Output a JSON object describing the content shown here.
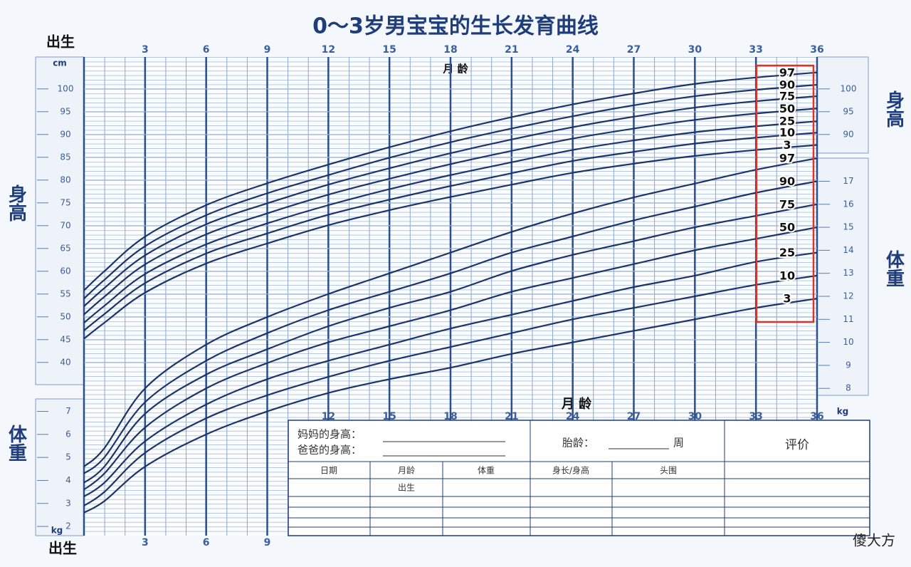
{
  "chart_data": {
    "type": "line",
    "title": "0～3岁男宝宝的生长发育曲线",
    "x_label": "月 龄",
    "y_label": "身高",
    "y2_label": "体重",
    "y_unit": "cm",
    "y2_unit": "kg",
    "x": [
      0,
      1,
      3,
      6,
      9,
      12,
      15,
      18,
      21,
      24,
      27,
      30,
      33,
      36
    ],
    "xlim": [
      0,
      36
    ],
    "xticks": [
      {
        "value": 0,
        "label": "出生"
      },
      3,
      6,
      9,
      12,
      15,
      18,
      21,
      24,
      27,
      30,
      33,
      36
    ],
    "ylim": [
      2,
      107
    ],
    "yticks": [
      40,
      45,
      50,
      55,
      60,
      65,
      70,
      75,
      80,
      85,
      90,
      95,
      100
    ],
    "y2lim": [
      1.6,
      22.4
    ],
    "y2ticks": [
      2,
      3,
      4,
      5,
      6,
      7,
      8,
      9,
      10,
      11,
      12,
      13,
      14,
      15,
      16,
      17
    ],
    "grid": true,
    "series": [
      {
        "name": "97",
        "color": "#1c3466",
        "values": [
          55.8,
          60.0,
          67.6,
          74.5,
          79.3,
          83.4,
          87.2,
          90.7,
          93.8,
          96.6,
          99.0,
          101.1,
          102.5,
          103.6
        ]
      },
      {
        "name": "90",
        "color": "#1c3466",
        "values": [
          54.0,
          58.1,
          65.5,
          72.3,
          77.1,
          81.1,
          84.9,
          88.3,
          91.3,
          94.0,
          96.4,
          98.4,
          99.8,
          100.9
        ]
      },
      {
        "name": "75",
        "color": "#1c3466",
        "values": [
          52.3,
          56.3,
          63.5,
          70.3,
          74.9,
          79.0,
          82.6,
          85.9,
          88.9,
          91.6,
          93.9,
          95.9,
          97.3,
          98.4
        ]
      },
      {
        "name": "50",
        "color": "#1c3466",
        "values": [
          50.5,
          54.4,
          61.5,
          68.1,
          72.7,
          76.8,
          80.3,
          83.5,
          86.4,
          89.1,
          91.3,
          93.2,
          94.6,
          95.7
        ]
      },
      {
        "name": "25",
        "color": "#1c3466",
        "values": [
          48.7,
          52.4,
          59.4,
          65.9,
          70.5,
          74.5,
          78.0,
          81.1,
          83.9,
          86.6,
          88.7,
          90.5,
          91.8,
          92.9
        ]
      },
      {
        "name": "10",
        "color": "#1c3466",
        "values": [
          47.0,
          50.6,
          57.4,
          63.9,
          68.3,
          72.4,
          75.7,
          78.7,
          81.5,
          84.2,
          86.2,
          88.0,
          89.3,
          90.4
        ]
      },
      {
        "name": "3",
        "color": "#1c3466",
        "values": [
          45.2,
          48.7,
          55.3,
          61.7,
          66.1,
          70.1,
          73.4,
          76.3,
          79.0,
          81.6,
          83.6,
          85.3,
          86.6,
          87.7
        ]
      },
      {
        "name": "97",
        "color": "#1c3466",
        "axis": "y2",
        "values": [
          4.6,
          5.4,
          8.0,
          9.9,
          11.1,
          12.1,
          13.0,
          13.9,
          14.8,
          15.6,
          16.3,
          16.9,
          17.5,
          18.0
        ]
      },
      {
        "name": "90",
        "color": "#1c3466",
        "axis": "y2",
        "values": [
          4.3,
          5.0,
          7.4,
          9.2,
          10.4,
          11.4,
          12.2,
          13.0,
          13.9,
          14.6,
          15.3,
          15.9,
          16.5,
          17.0
        ]
      },
      {
        "name": "75",
        "color": "#1c3466",
        "axis": "y2",
        "values": [
          3.9,
          4.6,
          6.9,
          8.6,
          9.7,
          10.7,
          11.5,
          12.2,
          13.1,
          13.8,
          14.4,
          15.0,
          15.5,
          16.0
        ]
      },
      {
        "name": "50",
        "color": "#1c3466",
        "axis": "y2",
        "values": [
          3.6,
          4.3,
          6.3,
          8.0,
          9.1,
          10.0,
          10.7,
          11.4,
          12.2,
          12.8,
          13.4,
          14.0,
          14.5,
          15.0
        ]
      },
      {
        "name": "25",
        "color": "#1c3466",
        "axis": "y2",
        "values": [
          3.3,
          3.9,
          5.7,
          7.3,
          8.4,
          9.2,
          9.9,
          10.6,
          11.2,
          11.8,
          12.4,
          12.9,
          13.5,
          13.9
        ]
      },
      {
        "name": "10",
        "color": "#1c3466",
        "axis": "y2",
        "values": [
          2.9,
          3.5,
          5.2,
          6.7,
          7.7,
          8.5,
          9.2,
          9.8,
          10.4,
          11.0,
          11.5,
          12.0,
          12.5,
          12.9
        ]
      },
      {
        "name": "3",
        "color": "#1c3466",
        "axis": "y2",
        "values": [
          2.6,
          3.1,
          4.6,
          6.0,
          7.0,
          7.8,
          8.4,
          8.9,
          9.5,
          10.0,
          10.5,
          11.0,
          11.5,
          11.9
        ]
      }
    ]
  },
  "form": {
    "mother_height": "妈妈的身高：",
    "father_height": "爸爸的身高：",
    "gestational_age": "胎龄：",
    "week": "周",
    "evaluation": "评价",
    "columns": [
      "日期",
      "月龄",
      "体重",
      "身长/身高",
      "头围"
    ],
    "first_row_age": "出生"
  },
  "watermark": "傻大方"
}
